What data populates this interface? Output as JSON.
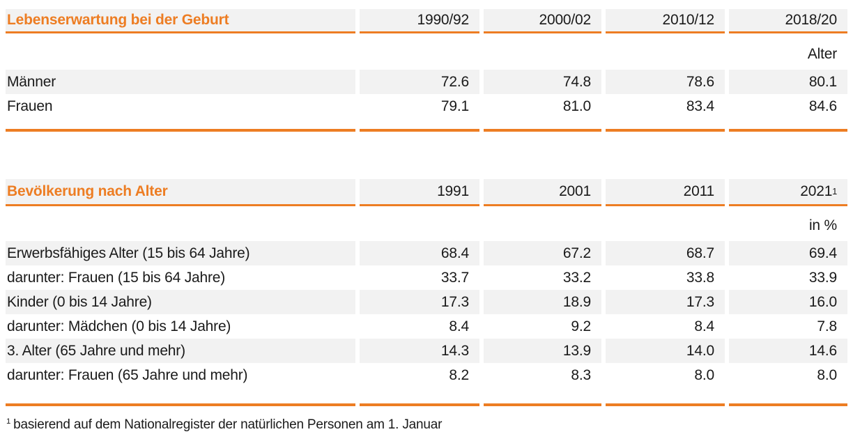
{
  "accent_color": "#ed7d23",
  "shade_color": "#f2f2f2",
  "tables": [
    {
      "title": "Lebenserwartung bei der Geburt",
      "columns": [
        "1990/92",
        "2000/02",
        "2010/12",
        "2018/20"
      ],
      "unit": "Alter",
      "rows": [
        {
          "label": "Männer",
          "values": [
            "72.6",
            "74.8",
            "78.6",
            "80.1"
          ]
        },
        {
          "label": "Frauen",
          "values": [
            "79.1",
            "81.0",
            "83.4",
            "84.6"
          ]
        }
      ]
    },
    {
      "title": "Bevölkerung nach Alter",
      "columns": [
        "1991",
        "2001",
        "2011",
        "2021"
      ],
      "column_sup": "1",
      "unit": "in %",
      "rows": [
        {
          "label": "Erwerbsfähiges Alter (15 bis 64 Jahre)",
          "values": [
            "68.4",
            "67.2",
            "68.7",
            "69.4"
          ]
        },
        {
          "label": "darunter: Frauen (15 bis 64 Jahre)",
          "values": [
            "33.7",
            "33.2",
            "33.8",
            "33.9"
          ]
        },
        {
          "label": "Kinder (0 bis 14 Jahre)",
          "values": [
            "17.3",
            "18.9",
            "17.3",
            "16.0"
          ]
        },
        {
          "label": "darunter: Mädchen (0 bis 14 Jahre)",
          "values": [
            "8.4",
            "9.2",
            "8.4",
            "7.8"
          ]
        },
        {
          "label": "3. Alter (65 Jahre und mehr)",
          "values": [
            "14.3",
            "13.9",
            "14.0",
            "14.6"
          ]
        },
        {
          "label": "darunter: Frauen (65 Jahre und mehr)",
          "values": [
            "8.2",
            "8.3",
            "8.0",
            "8.0"
          ]
        }
      ]
    }
  ],
  "footnote": {
    "marker": "1",
    "text": "basierend auf dem Nationalregister der natürlichen Personen am 1. Januar"
  }
}
